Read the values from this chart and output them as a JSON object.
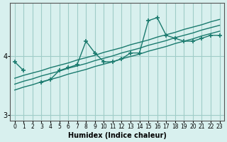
{
  "xlabel": "Humidex (Indice chaleur)",
  "x_values": [
    0,
    1,
    2,
    3,
    4,
    5,
    6,
    7,
    8,
    9,
    10,
    11,
    12,
    13,
    14,
    15,
    16,
    17,
    18,
    19,
    20,
    21,
    22,
    23
  ],
  "main_line_y": [
    3.9,
    3.75,
    null,
    3.55,
    3.6,
    3.75,
    3.8,
    3.85,
    4.25,
    4.05,
    3.9,
    3.9,
    3.95,
    4.05,
    4.05,
    4.6,
    4.65,
    4.35,
    4.3,
    4.25,
    4.25,
    4.3,
    4.35,
    4.35
  ],
  "reg_line1": [
    3.62,
    3.67,
    3.71,
    3.75,
    3.8,
    3.84,
    3.88,
    3.93,
    3.97,
    4.01,
    4.06,
    4.1,
    4.14,
    4.19,
    4.23,
    4.27,
    4.32,
    4.36,
    4.4,
    4.45,
    4.49,
    4.53,
    4.58,
    4.62
  ],
  "reg_line2": [
    3.52,
    3.57,
    3.61,
    3.66,
    3.7,
    3.74,
    3.79,
    3.83,
    3.87,
    3.92,
    3.96,
    4.0,
    4.05,
    4.09,
    4.13,
    4.18,
    4.22,
    4.26,
    4.31,
    4.35,
    4.39,
    4.44,
    4.48,
    4.52
  ],
  "reg_line3": [
    3.42,
    3.47,
    3.51,
    3.56,
    3.6,
    3.64,
    3.69,
    3.73,
    3.77,
    3.82,
    3.86,
    3.9,
    3.95,
    3.99,
    4.03,
    4.08,
    4.12,
    4.16,
    4.21,
    4.25,
    4.29,
    4.34,
    4.38,
    4.42
  ],
  "line_color": "#1a7a6e",
  "bg_color": "#d8f0ee",
  "grid_color": "#a0ccc8",
  "yticks": [
    3,
    4
  ],
  "ylim": [
    2.9,
    4.9
  ],
  "xlim": [
    -0.5,
    23.5
  ]
}
